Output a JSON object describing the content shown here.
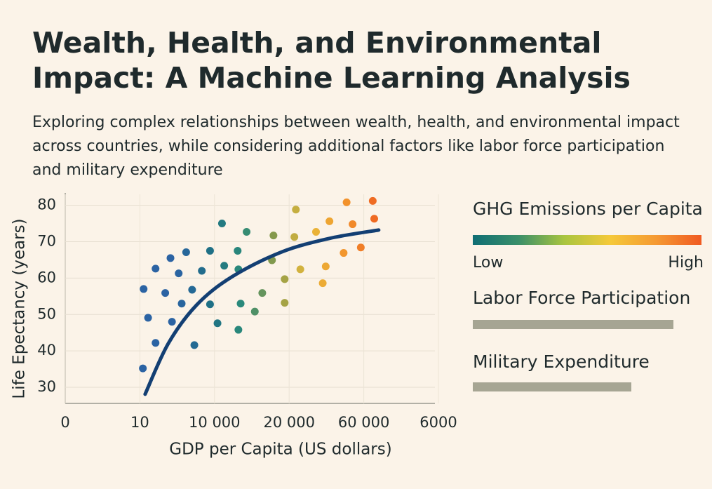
{
  "chart_data": {
    "type": "scatter",
    "title": "Wealth, Health, and Environmental Impact: A Machine Learning Analysis",
    "subtitle": "Exploring complex relationships between wealth, health, and environmental impact across countries, while considering additional factors like labor force participation and military expenditure",
    "xlabel": "GDP per Capita (US dollars)",
    "ylabel": "Life Epectancy (years)",
    "xlim": [
      0,
      5
    ],
    "ylim": [
      25,
      83
    ],
    "xticks": [
      {
        "value": 0,
        "label": "0"
      },
      {
        "value": 1,
        "label": "10"
      },
      {
        "value": 2,
        "label": "10 000"
      },
      {
        "value": 3,
        "label": "20 000"
      },
      {
        "value": 4,
        "label": "60 000"
      },
      {
        "value": 5,
        "label": "6000"
      }
    ],
    "yticks": [
      30,
      40,
      50,
      60,
      70,
      80
    ],
    "grid": true,
    "x": [
      1.05,
      1.11,
      1.04,
      1.21,
      1.21,
      1.34,
      1.41,
      1.43,
      1.52,
      1.56,
      1.62,
      1.7,
      1.73,
      1.83,
      1.94,
      1.94,
      2.04,
      2.1,
      2.13,
      2.31,
      2.32,
      2.35,
      2.32,
      2.43,
      2.54,
      2.64,
      2.77,
      2.79,
      2.94,
      2.94,
      3.09,
      3.07,
      3.15,
      3.36,
      3.45,
      3.49,
      3.54,
      3.73,
      3.77,
      3.85,
      3.96,
      4.12,
      4.14
    ],
    "values": [
      57,
      49.1,
      35.2,
      42.2,
      62.6,
      55.9,
      65.5,
      48,
      61.3,
      53,
      67.1,
      56.8,
      41.6,
      62,
      52.8,
      67.5,
      47.6,
      75,
      63.4,
      67.5,
      62.4,
      53,
      45.8,
      72.7,
      50.8,
      55.9,
      64.9,
      71.7,
      59.7,
      53.2,
      78.8,
      71.3,
      62.4,
      72.7,
      58.6,
      63.2,
      75.6,
      66.9,
      80.8,
      74.8,
      68.4,
      81.2,
      76.3
    ],
    "point_colors": [
      "#2b63a3",
      "#2b63a3",
      "#1f6f86",
      "#2a8a7a",
      "#8a9a4a",
      "#e8b93a",
      "#f29a2e",
      "#ef6a22"
    ],
    "trend": {
      "color": "#133f73",
      "x": [
        1.07,
        1.38,
        1.76,
        2.23,
        2.89,
        3.54,
        4.2
      ],
      "y": [
        28.1,
        42,
        52.6,
        60.3,
        67.1,
        70.9,
        73.2
      ]
    },
    "legend": {
      "title": "GHG Emissions per Capita",
      "low": "Low",
      "high": "High",
      "colors": [
        "#0f6e74",
        "#3a8f6a",
        "#a9c53f",
        "#f5c93a",
        "#f59a33",
        "#f05a22"
      ]
    },
    "factors": [
      "Labor Force Participation",
      "Military Expenditure"
    ]
  }
}
